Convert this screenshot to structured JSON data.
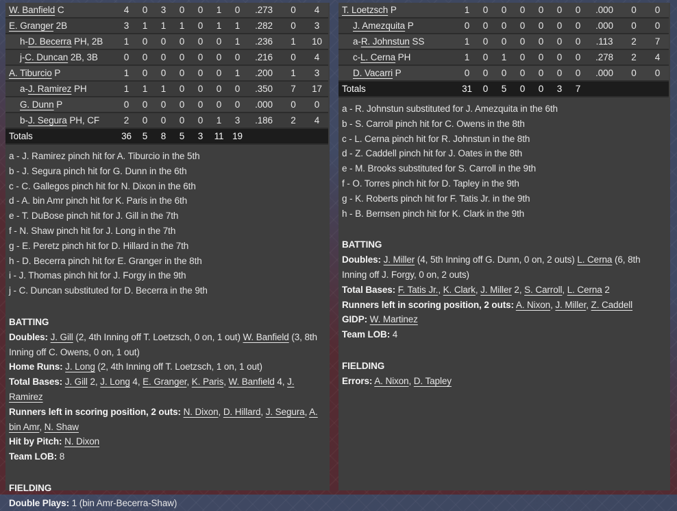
{
  "colors": {
    "page_red": "#542b32",
    "page_navy": "#3d4760",
    "panel_bg": "#3e3e3e",
    "row_odd": "#414141",
    "row_even": "#3b3b3b",
    "totals_bg": "#1c1c1c",
    "text": "#e8e8e8"
  },
  "left": {
    "rows": [
      {
        "pre": "",
        "name": "W. Banfield",
        "pos": "C",
        "ind": 0,
        "s": [
          "4",
          "0",
          "3",
          "0",
          "0",
          "1",
          "0",
          ".273",
          "0",
          "4"
        ]
      },
      {
        "pre": "",
        "name": "E. Granger",
        "pos": "2B",
        "ind": 0,
        "s": [
          "3",
          "1",
          "1",
          "1",
          "0",
          "1",
          "1",
          ".282",
          "0",
          "3"
        ]
      },
      {
        "pre": "h-",
        "name": "D. Becerra",
        "pos": "PH, 2B",
        "ind": 1,
        "s": [
          "1",
          "0",
          "0",
          "0",
          "0",
          "0",
          "1",
          ".236",
          "1",
          "10"
        ]
      },
      {
        "pre": "j-",
        "name": "C. Duncan",
        "pos": "2B, 3B",
        "ind": 1,
        "s": [
          "0",
          "0",
          "0",
          "0",
          "0",
          "0",
          "0",
          ".216",
          "0",
          "4"
        ]
      },
      {
        "pre": "",
        "name": "A. Tiburcio",
        "pos": "P",
        "ind": 0,
        "s": [
          "1",
          "0",
          "0",
          "0",
          "0",
          "0",
          "1",
          ".200",
          "1",
          "3"
        ]
      },
      {
        "pre": "a-",
        "name": "J. Ramirez",
        "pos": "PH",
        "ind": 1,
        "s": [
          "1",
          "1",
          "1",
          "0",
          "0",
          "0",
          "0",
          ".350",
          "7",
          "17"
        ]
      },
      {
        "pre": "",
        "name": "G. Dunn",
        "pos": "P",
        "ind": 1,
        "s": [
          "0",
          "0",
          "0",
          "0",
          "0",
          "0",
          "0",
          ".000",
          "0",
          "0"
        ]
      },
      {
        "pre": "b-",
        "name": "J. Segura",
        "pos": "PH, CF",
        "ind": 1,
        "s": [
          "2",
          "0",
          "0",
          "0",
          "0",
          "1",
          "3",
          ".186",
          "2",
          "4"
        ]
      }
    ],
    "totals_label": "Totals",
    "totals": [
      "36",
      "5",
      "8",
      "5",
      "3",
      "11",
      "19",
      "",
      "",
      ""
    ],
    "substitutions": [
      "a - J. Ramirez pinch hit for A. Tiburcio in the 5th",
      "b - J. Segura pinch hit for G. Dunn in the 6th",
      "c - C. Gallegos pinch hit for N. Dixon in the 6th",
      "d - A. bin Amr pinch hit for K. Paris in the 6th",
      "e - T. DuBose pinch hit for J. Gill in the 7th",
      "f - N. Shaw pinch hit for J. Long in the 7th",
      "g - E. Peretz pinch hit for D. Hillard in the 7th",
      "h - D. Becerra pinch hit for E. Granger in the 8th",
      "i - J. Thomas pinch hit for J. Forgy in the 9th",
      "j - C. Duncan substituted for D. Becerra in the 9th"
    ],
    "batting_title": "BATTING",
    "batting_lines": [
      [
        {
          "t": "Doubles:",
          "b": 1
        },
        {
          "t": " "
        },
        {
          "t": "J. Gill",
          "l": 1
        },
        {
          "t": " (2, 4th Inning off T. Loetzsch, 0 on, 1 out) "
        },
        {
          "t": "W. Banfield",
          "l": 1
        },
        {
          "t": " (3, 8th Inning off C. Owens, 0 on, 1 out)"
        }
      ],
      [
        {
          "t": "Home Runs:",
          "b": 1
        },
        {
          "t": " "
        },
        {
          "t": "J. Long",
          "l": 1
        },
        {
          "t": " (2, 4th Inning off T. Loetzsch, 1 on, 1 out)"
        }
      ],
      [
        {
          "t": "Total Bases:",
          "b": 1
        },
        {
          "t": " "
        },
        {
          "t": "J. Gill",
          "l": 1
        },
        {
          "t": " 2, "
        },
        {
          "t": "J. Long",
          "l": 1
        },
        {
          "t": " 4, "
        },
        {
          "t": "E. Granger",
          "l": 1
        },
        {
          "t": ", "
        },
        {
          "t": "K. Paris",
          "l": 1
        },
        {
          "t": ", "
        },
        {
          "t": "W. Banfield",
          "l": 1
        },
        {
          "t": " 4, "
        },
        {
          "t": "J. Ramirez",
          "l": 1
        }
      ],
      [
        {
          "t": "Runners left in scoring position, 2 outs:",
          "b": 1
        },
        {
          "t": " "
        },
        {
          "t": "N. Dixon",
          "l": 1
        },
        {
          "t": ", "
        },
        {
          "t": "D. Hillard",
          "l": 1
        },
        {
          "t": ", "
        },
        {
          "t": "J. Segura",
          "l": 1
        },
        {
          "t": ", "
        },
        {
          "t": "A. bin Amr",
          "l": 1
        },
        {
          "t": ", "
        },
        {
          "t": "N. Shaw",
          "l": 1
        }
      ],
      [
        {
          "t": "Hit by Pitch:",
          "b": 1
        },
        {
          "t": " "
        },
        {
          "t": "N. Dixon",
          "l": 1
        }
      ],
      [
        {
          "t": "Team LOB:",
          "b": 1
        },
        {
          "t": " 8"
        }
      ]
    ],
    "fielding_title": "FIELDING",
    "fielding_lines": [
      [
        {
          "t": "Double Plays:",
          "b": 1
        },
        {
          "t": " 1 (bin Amr-Becerra-Shaw)"
        }
      ]
    ]
  },
  "right": {
    "rows": [
      {
        "pre": "",
        "name": "T. Loetzsch",
        "pos": "P",
        "ind": 0,
        "s": [
          "1",
          "0",
          "0",
          "0",
          "0",
          "0",
          "0",
          ".000",
          "0",
          "0"
        ]
      },
      {
        "pre": "",
        "name": "J. Amezquita",
        "pos": "P",
        "ind": 1,
        "s": [
          "0",
          "0",
          "0",
          "0",
          "0",
          "0",
          "0",
          ".000",
          "0",
          "0"
        ]
      },
      {
        "pre": "a-",
        "name": "R. Johnstun",
        "pos": "SS",
        "ind": 1,
        "s": [
          "1",
          "0",
          "0",
          "0",
          "0",
          "0",
          "0",
          ".113",
          "2",
          "7"
        ]
      },
      {
        "pre": "c-",
        "name": "L. Cerna",
        "pos": "PH",
        "ind": 1,
        "s": [
          "1",
          "0",
          "1",
          "0",
          "0",
          "0",
          "0",
          ".278",
          "2",
          "4"
        ]
      },
      {
        "pre": "",
        "name": "D. Vacarri",
        "pos": "P",
        "ind": 1,
        "s": [
          "0",
          "0",
          "0",
          "0",
          "0",
          "0",
          "0",
          ".000",
          "0",
          "0"
        ]
      }
    ],
    "totals_label": "Totals",
    "totals": [
      "31",
      "0",
      "5",
      "0",
      "0",
      "3",
      "7",
      "",
      "",
      ""
    ],
    "substitutions": [
      "a - R. Johnstun substituted for J. Amezquita in the 6th",
      "b - S. Carroll pinch hit for C. Owens in the 8th",
      "c - L. Cerna pinch hit for R. Johnstun in the 8th",
      "d - Z. Caddell pinch hit for J. Oates in the 8th",
      "e - M. Brooks substituted for S. Carroll in the 9th",
      "f - O. Torres pinch hit for D. Tapley in the 9th",
      "g - K. Roberts pinch hit for F. Tatis Jr. in the 9th",
      "h - B. Bernsen pinch hit for K. Clark in the 9th"
    ],
    "batting_title": "BATTING",
    "batting_lines": [
      [
        {
          "t": "Doubles:",
          "b": 1
        },
        {
          "t": " "
        },
        {
          "t": "J. Miller",
          "l": 1
        },
        {
          "t": " (4, 5th Inning off G. Dunn, 0 on, 2 outs) "
        },
        {
          "t": "L. Cerna",
          "l": 1
        },
        {
          "t": " (6, 8th Inning off J. Forgy, 0 on, 2 outs)"
        }
      ],
      [
        {
          "t": "Total Bases:",
          "b": 1
        },
        {
          "t": " "
        },
        {
          "t": "F. Tatis Jr.",
          "l": 1
        },
        {
          "t": ", "
        },
        {
          "t": "K. Clark",
          "l": 1
        },
        {
          "t": ", "
        },
        {
          "t": "J. Miller",
          "l": 1
        },
        {
          "t": " 2, "
        },
        {
          "t": "S. Carroll",
          "l": 1
        },
        {
          "t": ", "
        },
        {
          "t": "L. Cerna",
          "l": 1
        },
        {
          "t": " 2"
        }
      ],
      [
        {
          "t": "Runners left in scoring position, 2 outs:",
          "b": 1
        },
        {
          "t": " "
        },
        {
          "t": "A. Nixon",
          "l": 1
        },
        {
          "t": ", "
        },
        {
          "t": "J. Miller",
          "l": 1
        },
        {
          "t": ", "
        },
        {
          "t": "Z. Caddell",
          "l": 1
        }
      ],
      [
        {
          "t": "GIDP:",
          "b": 1
        },
        {
          "t": " "
        },
        {
          "t": "W. Martinez",
          "l": 1
        }
      ],
      [
        {
          "t": "Team LOB:",
          "b": 1
        },
        {
          "t": " 4"
        }
      ]
    ],
    "fielding_title": "FIELDING",
    "fielding_lines": [
      [
        {
          "t": "Errors:",
          "b": 1
        },
        {
          "t": " "
        },
        {
          "t": "A. Nixon",
          "l": 1
        },
        {
          "t": ", "
        },
        {
          "t": "D. Tapley",
          "l": 1
        }
      ]
    ]
  }
}
